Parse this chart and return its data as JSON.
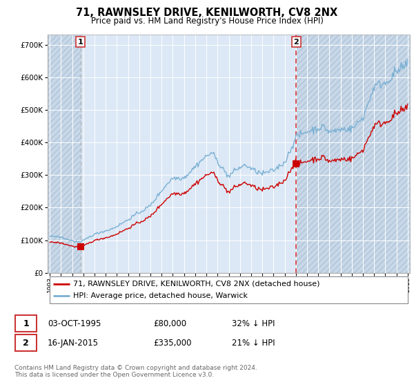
{
  "title": "71, RAWNSLEY DRIVE, KENILWORTH, CV8 2NX",
  "subtitle": "Price paid vs. HM Land Registry's House Price Index (HPI)",
  "bg_color": "#ffffff",
  "plot_bg_color": "#dce8f5",
  "hatch_bg_color": "#c8d8e8",
  "hatch_color": "#b0c4d8",
  "grid_color": "#ffffff",
  "sale1": {
    "date": 1995.75,
    "price": 80000,
    "label": "1"
  },
  "sale2": {
    "date": 2015.04,
    "price": 335000,
    "label": "2"
  },
  "legend_line1": "71, RAWNSLEY DRIVE, KENILWORTH, CV8 2NX (detached house)",
  "legend_line2": "HPI: Average price, detached house, Warwick",
  "footer": "Contains HM Land Registry data © Crown copyright and database right 2024.\nThis data is licensed under the Open Government Licence v3.0.",
  "sale_color": "#cc0000",
  "hpi_color": "#7ab0d4",
  "vline1_color": "#aaaaaa",
  "vline2_color": "#dd3333",
  "box_border_color": "#cc3333",
  "yticks": [
    0,
    100000,
    200000,
    300000,
    400000,
    500000,
    600000,
    700000
  ],
  "ylim": [
    0,
    730000
  ],
  "xlim": [
    1992.8,
    2025.2
  ],
  "xticks": [
    1993,
    1994,
    1995,
    1996,
    1997,
    1998,
    1999,
    2000,
    2001,
    2002,
    2003,
    2004,
    2005,
    2006,
    2007,
    2008,
    2009,
    2010,
    2011,
    2012,
    2013,
    2014,
    2015,
    2016,
    2017,
    2018,
    2019,
    2020,
    2021,
    2022,
    2023,
    2024,
    2025
  ]
}
